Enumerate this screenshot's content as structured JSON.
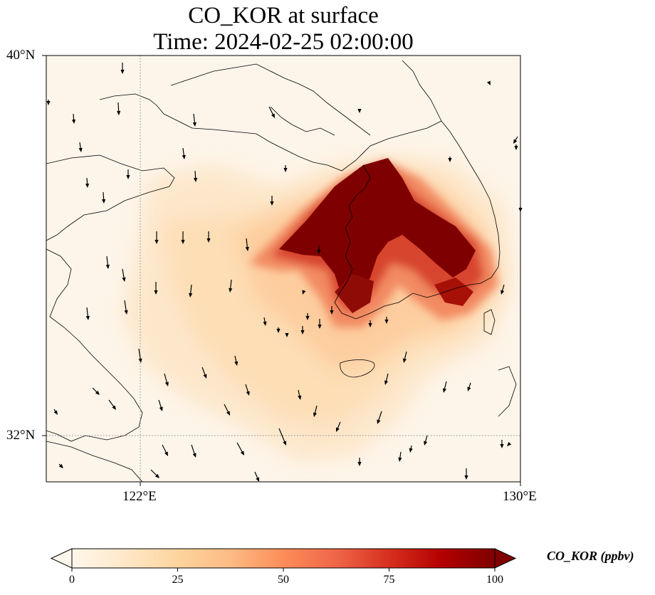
{
  "title_line1": "CO_KOR at surface",
  "title_line2": "Time: 2024-02-25 02:00:00",
  "variable": "CO_KOR",
  "level": "surface",
  "time": "2024-02-25 02:00:00",
  "map": {
    "lon_range": [
      119,
      130
    ],
    "lat_range": [
      31,
      40
    ],
    "x_ticks": [
      "122°E",
      "130°E"
    ],
    "y_ticks": [
      "40°N",
      "32°N"
    ],
    "gridlines": {
      "lon": [
        122
      ],
      "lat": [
        32
      ],
      "style": "dotted"
    },
    "features": [
      "coastlines",
      "wind-vectors",
      "concentration-field"
    ],
    "hotspot_region": "Korean Peninsula (west and south-east)"
  },
  "colorbar": {
    "label": "CO_KOR (ppbv)",
    "colormap": "OrRd",
    "ticks": [
      "0",
      "25",
      "50",
      "75",
      "100"
    ],
    "range": [
      0,
      100
    ],
    "extend": "both",
    "stops": [
      "#fff7ec",
      "#fee8c8",
      "#fdd49e",
      "#fdbb84",
      "#fc8d59",
      "#ef6548",
      "#d7301f",
      "#b30000",
      "#7f0000"
    ]
  },
  "colors": {
    "frame": "#000000",
    "coast": "#000000",
    "gridline": "#888888",
    "background": "#fdf5ea"
  }
}
